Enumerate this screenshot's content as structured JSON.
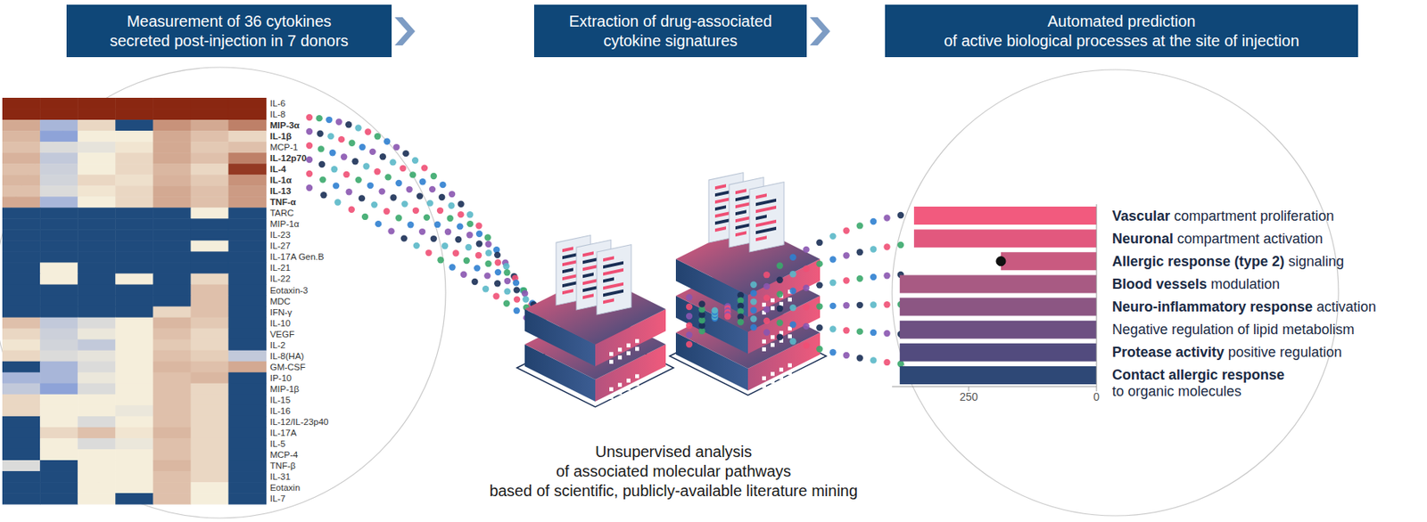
{
  "header": {
    "steps": [
      "Measurement of 36 cytokines\nsecreted post-injection in 7 donors",
      "Extraction of drug-associated\ncytokine signatures",
      "Automated prediction\nof active biological processes at the site of injection"
    ]
  },
  "heatmap": {
    "rows": [
      "IL-6",
      "IL-8",
      "MIP-3α",
      "IL-1β",
      "MCP-1",
      "IL-12p70",
      "IL-4",
      "IL-1α",
      "IL-13",
      "TNF-α",
      "TARC",
      "MIP-1α",
      "IL-23",
      "IL-27",
      "IL-17A Gen.B",
      "IL-21",
      "IL-22",
      "Eotaxin-3",
      "MDC",
      "IFN-γ",
      "IL-10",
      "VEGF",
      "IL-2",
      "IL-8(HA)",
      "GM-CSF",
      "IP-10",
      "MIP-1β",
      "IL-15",
      "IL-16",
      "IL-12/IL-23p40",
      "IL-17A",
      "IL-5",
      "MCP-4",
      "TNF-β",
      "IL-31",
      "Eotaxin",
      "IL-7"
    ],
    "bold_rows": [
      "MIP-3α",
      "IL-1β",
      "IL-12p70",
      "IL-4",
      "IL-1α",
      "IL-13",
      "TNF-α"
    ],
    "cells": [
      [
        1,
        1,
        1,
        1,
        1,
        1,
        1
      ],
      [
        1,
        1,
        1,
        1,
        1,
        1,
        1
      ],
      [
        0.65,
        0.35,
        0.55,
        0,
        0.7,
        0.65,
        0.75
      ],
      [
        0.62,
        0.3,
        0.5,
        0.5,
        0.65,
        0.6,
        0.55
      ],
      [
        0.6,
        0.45,
        0.47,
        0.52,
        0.65,
        0.58,
        0.6
      ],
      [
        0.63,
        0.4,
        0.5,
        0.55,
        0.65,
        0.6,
        0.75
      ],
      [
        0.6,
        0.42,
        0.5,
        0.55,
        0.62,
        0.55,
        0.95
      ],
      [
        0.62,
        0.43,
        0.55,
        0.53,
        0.63,
        0.58,
        0.7
      ],
      [
        0.6,
        0.45,
        0.52,
        0.55,
        0.65,
        0.6,
        0.68
      ],
      [
        0.65,
        0.35,
        0.5,
        0.55,
        0.65,
        0.6,
        0.68
      ],
      [
        0,
        0,
        0,
        0,
        0,
        0.5,
        0
      ],
      [
        0,
        0,
        0,
        0,
        0,
        0,
        0
      ],
      [
        0,
        0,
        0,
        0,
        0,
        0,
        0
      ],
      [
        0,
        0,
        0,
        0,
        0,
        0.5,
        0
      ],
      [
        0,
        0,
        0,
        0,
        0,
        0,
        0
      ],
      [
        0,
        0.5,
        0,
        0,
        0,
        0,
        0
      ],
      [
        0,
        0.5,
        0,
        0.5,
        0,
        0.55,
        0
      ],
      [
        0,
        0,
        0,
        0,
        0,
        0.6,
        0
      ],
      [
        0,
        0,
        0,
        0,
        0,
        0.6,
        0
      ],
      [
        0,
        0,
        0,
        0,
        0.55,
        0.6,
        0
      ],
      [
        0.6,
        0.4,
        0.45,
        0.5,
        0.62,
        0.58,
        0
      ],
      [
        0.55,
        0.42,
        0.48,
        0.5,
        0.6,
        0.55,
        0
      ],
      [
        0.52,
        0.43,
        0.4,
        0.5,
        0.58,
        0.55,
        0
      ],
      [
        0.55,
        0.45,
        0.47,
        0.5,
        0.6,
        0.57,
        0.4
      ],
      [
        0,
        0.35,
        0.45,
        0.5,
        0.62,
        0.6,
        0.65
      ],
      [
        0.35,
        0.35,
        0.48,
        0.5,
        0.6,
        0.62,
        0
      ],
      [
        0.4,
        0.3,
        0.45,
        0.5,
        0.6,
        0.55,
        0
      ],
      [
        0.55,
        0.5,
        0.5,
        0.5,
        0.6,
        0.55,
        0
      ],
      [
        0.55,
        0.5,
        0.5,
        0.48,
        0.6,
        0.55,
        0
      ],
      [
        0,
        0.5,
        0.45,
        0.5,
        0.6,
        0.55,
        0
      ],
      [
        0,
        0.55,
        0.6,
        0.52,
        0.62,
        0.55,
        0
      ],
      [
        0,
        0.5,
        0.45,
        0.48,
        0.6,
        0.55,
        0
      ],
      [
        0,
        0.5,
        0.5,
        0.5,
        0.6,
        0.55,
        0
      ],
      [
        0.45,
        0,
        0.5,
        0.5,
        0.62,
        0.55,
        0
      ],
      [
        0,
        0,
        0.5,
        0.5,
        0.6,
        0.55,
        0
      ],
      [
        0,
        0,
        0.5,
        0.5,
        0.6,
        0.5,
        0
      ],
      [
        0,
        0,
        0.5,
        0,
        0.6,
        0.5,
        0
      ]
    ],
    "color_range": [
      0,
      1
    ]
  },
  "pipeline": {
    "text": [
      "Unsupervised analysis",
      "of associated molecular pathways",
      "based of scientific, publicly-available literature mining"
    ]
  },
  "chart_data": {
    "type": "bar",
    "orientation": "horizontal",
    "categories": [
      "Vascular compartment proliferation",
      "Neuronal compartment activation",
      "Allergic response (type 2) signaling",
      "Blood vessels modulation",
      "Neuro-inflammatory response activation",
      "Negative regulation of lipid metabolism",
      "Protease activity positive regulation",
      "Contact allergic response\nto organic molecules"
    ],
    "bold_parts": [
      "Vascular",
      "Neuronal",
      "Allergic response (type 2)",
      "Blood vessels",
      "Neuro-inflammatory response",
      null,
      "Protease activity",
      "Contact allergic response"
    ],
    "values": [
      357,
      357,
      187,
      385,
      385,
      385,
      385,
      385
    ],
    "colors": [
      "#f25a7e",
      "#e2587e",
      "#c95a80",
      "#a85a83",
      "#8c5683",
      "#6d5082",
      "#524b7e",
      "#2e4876"
    ],
    "marker_values": [
      null,
      null,
      187,
      null,
      null,
      null,
      null,
      null
    ],
    "marker": "circle",
    "xlim": [
      0,
      400
    ],
    "xticks": [
      0,
      250
    ]
  }
}
